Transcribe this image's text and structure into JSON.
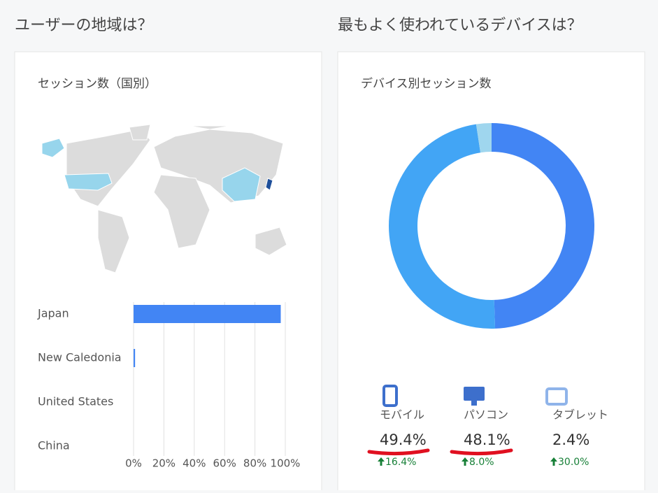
{
  "sections": [
    {
      "heading": "ユーザーの地域は？"
    },
    {
      "heading": "最もよく使われているデバイスは？"
    }
  ],
  "chart_data": [
    {
      "type": "hbar",
      "title": "セッション数（国別）",
      "categories": [
        "Japan",
        "New Caledonia",
        "United States",
        "China"
      ],
      "values": [
        97,
        1,
        0,
        0
      ],
      "color": "#4285f4",
      "xlim": [
        0,
        100
      ],
      "xticks": [
        {
          "value": 0,
          "label": "0%"
        },
        {
          "value": 20,
          "label": "20%"
        },
        {
          "value": 40,
          "label": "40%"
        },
        {
          "value": 60,
          "label": "60%"
        },
        {
          "value": 80,
          "label": "80%"
        },
        {
          "value": 100,
          "label": "100%"
        }
      ],
      "grid": true
    },
    {
      "type": "donut",
      "title": "デバイス別セッション数",
      "categories": [
        "モバイル",
        "パソコン",
        "タブレット"
      ],
      "values": [
        49.4,
        48.1,
        2.4
      ],
      "value_labels": [
        "49.4%",
        "48.1%",
        "2.4%"
      ],
      "colors": [
        "#4285f4",
        "#42a5f5",
        "#9fd6ee"
      ],
      "changes": [
        16.4,
        8.0,
        30.0
      ],
      "change_labels": [
        "16.4%",
        "8.0%",
        "30.0%"
      ]
    }
  ]
}
